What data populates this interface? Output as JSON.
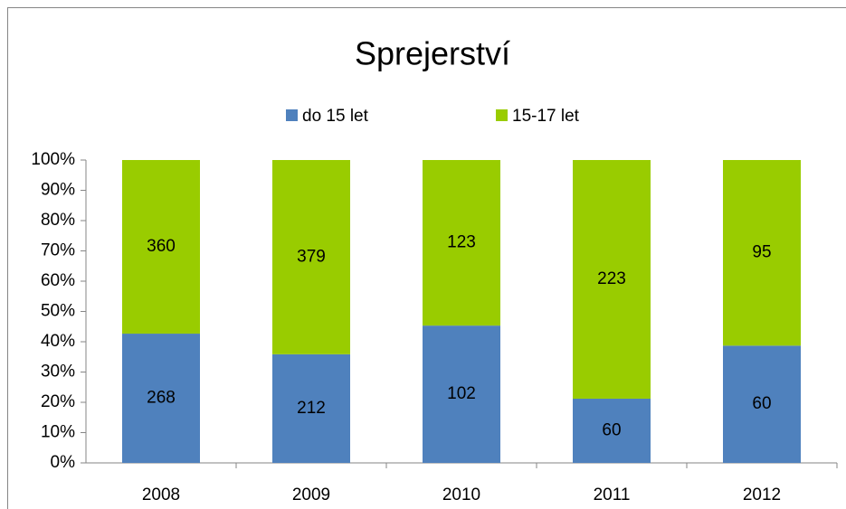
{
  "chart_data": {
    "type": "bar",
    "stacked": "percent",
    "title": "Sprejerství",
    "categories": [
      "2008",
      "2009",
      "2010",
      "2011",
      "2012"
    ],
    "series": [
      {
        "name": "do 15 let",
        "color": "#4f81bd",
        "values": [
          268,
          212,
          102,
          60,
          60
        ]
      },
      {
        "name": "15-17 let",
        "color": "#99cc00",
        "values": [
          360,
          379,
          123,
          223,
          95
        ]
      }
    ],
    "ylim": [
      0,
      100
    ],
    "yticks": [
      {
        "value": 0,
        "label": "0%"
      },
      {
        "value": 10,
        "label": "10%"
      },
      {
        "value": 20,
        "label": "20%"
      },
      {
        "value": 30,
        "label": "30%"
      },
      {
        "value": 40,
        "label": "40%"
      },
      {
        "value": 50,
        "label": "50%"
      },
      {
        "value": 60,
        "label": "60%"
      },
      {
        "value": 70,
        "label": "70%"
      },
      {
        "value": 80,
        "label": "80%"
      },
      {
        "value": 90,
        "label": "90%"
      },
      {
        "value": 100,
        "label": "100%"
      }
    ],
    "legend": "top"
  }
}
